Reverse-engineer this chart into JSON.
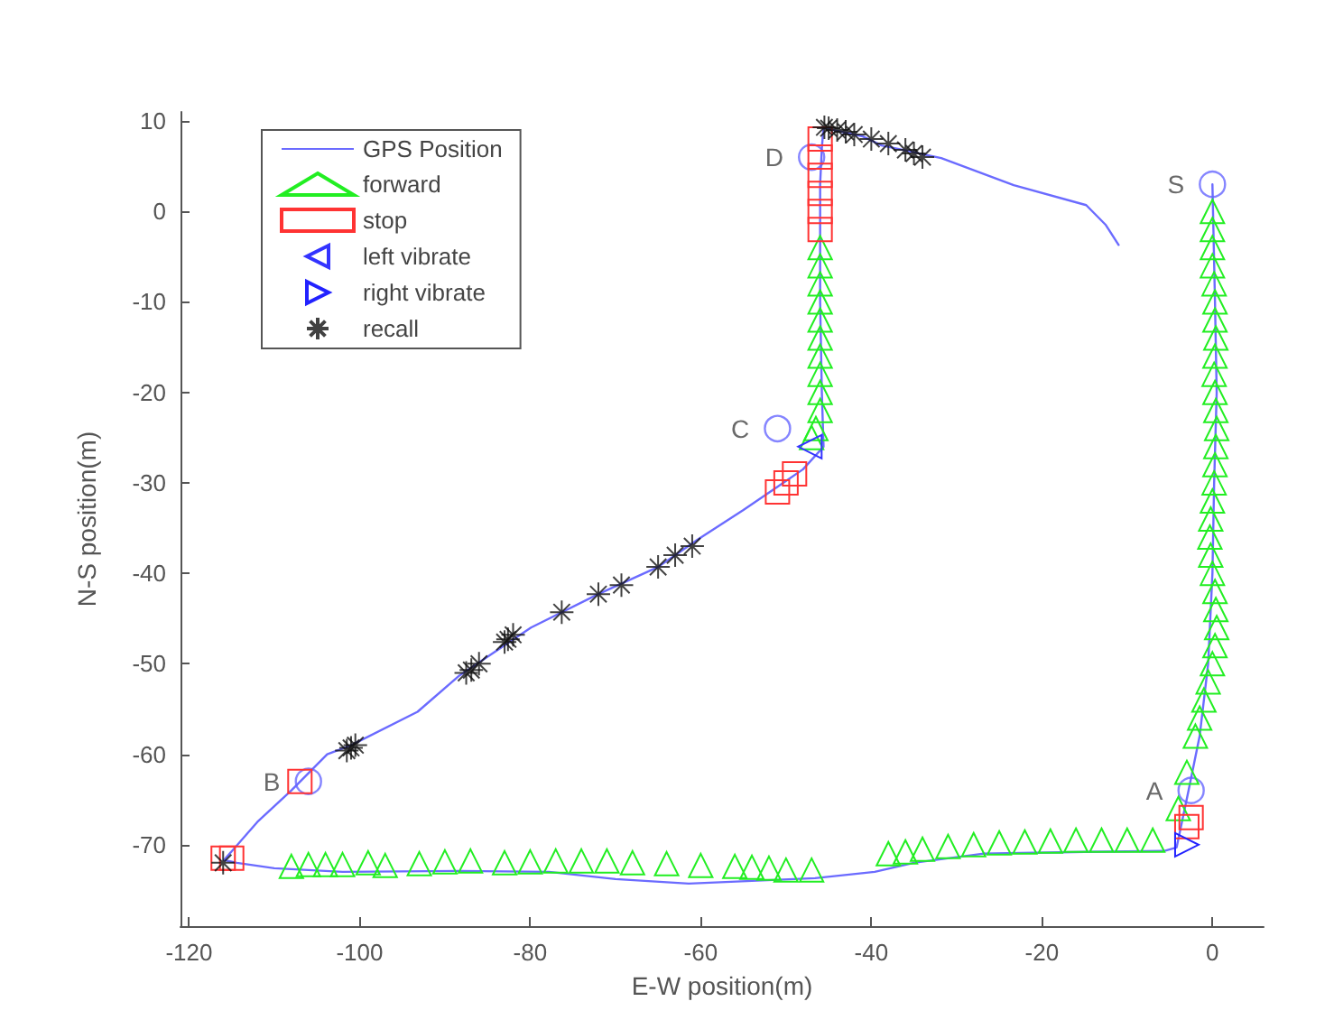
{
  "chart_data": {
    "type": "scatter",
    "xlabel": "E-W position(m)",
    "ylabel": "N-S position(m)",
    "xlim": [
      -121,
      6
    ],
    "ylim": [
      -79,
      11
    ],
    "xticks": [
      -120,
      -100,
      -80,
      -60,
      -40,
      -20,
      0
    ],
    "yticks": [
      -70,
      -60,
      -50,
      -40,
      -30,
      -20,
      -10,
      0,
      10
    ],
    "grid": false,
    "legend": "top left",
    "series": [
      {
        "name": "GPS Position",
        "type": "line",
        "marker": "none",
        "color": "#6b6bff",
        "x": [
          0,
          0.3,
          0.5,
          0.2,
          0,
          -0.5,
          -1.5,
          -2.8,
          -4.2,
          -5.7,
          -15,
          -27,
          -35,
          -39.6,
          -46.6,
          -54,
          -61.4,
          -70,
          -77.8,
          -88.3,
          -102,
          -110,
          -114.4,
          -115.9,
          -112,
          -108,
          -103.8,
          -101,
          -93.2,
          -88.3,
          -79.9,
          -72,
          -65,
          -60.4,
          -55,
          -50.8,
          -48,
          -45.6,
          -45.8,
          -46,
          -46,
          -46,
          -45.8,
          -45.6,
          -44,
          -41,
          -38.8,
          -31.8,
          -23.3,
          -14.8,
          -12.5,
          -11
        ],
        "values": [
          3,
          -10,
          -20,
          -30,
          -40,
          -50,
          -58,
          -64,
          -70.3,
          -70.7,
          -70.8,
          -71,
          -72,
          -73,
          -73.7,
          -74,
          -74.3,
          -73.8,
          -73,
          -72.9,
          -73,
          -72.6,
          -72,
          -71.7,
          -67.5,
          -64,
          -60,
          -59,
          -55.3,
          -51.3,
          -46,
          -42.3,
          -39.3,
          -36.3,
          -33,
          -30.3,
          -28.5,
          -26,
          -20,
          -10,
          -3,
          3,
          7,
          9.3,
          8.9,
          8.3,
          7.3,
          5.9,
          2.9,
          0.7,
          -1.5,
          -3.7
        ]
      },
      {
        "name": "forward",
        "marker": "triangle",
        "color": "#22ee22",
        "x": [
          0,
          0,
          0,
          0,
          0.2,
          0.3,
          0.3,
          0.4,
          0.3,
          0.2,
          0.3,
          0.4,
          0.5,
          0.4,
          0.3,
          0.2,
          0,
          -0.2,
          -0.3,
          -0.2,
          0,
          0.3,
          0.4,
          0.5,
          0.3,
          0,
          -0.5,
          -1,
          -1.5,
          -2,
          -3,
          -4,
          -7,
          -10,
          -13,
          -16,
          -19,
          -22,
          -25,
          -28,
          -31,
          -34,
          -36,
          -38,
          -47,
          -50,
          -52,
          -54,
          -56,
          -60,
          -64,
          -68,
          -71,
          -74,
          -77,
          -80,
          -83,
          -87,
          -90,
          -93,
          -97,
          -99,
          -102,
          -104,
          -106,
          -108,
          -46,
          -46,
          -46,
          -46,
          -46,
          -46,
          -46,
          -46,
          -46,
          -46,
          -46.5,
          -47
        ],
        "values": [
          0,
          -2,
          -4,
          -6,
          -8,
          -10,
          -12,
          -14,
          -16,
          -18,
          -20,
          -22,
          -24,
          -26,
          -28,
          -30,
          -32,
          -34,
          -36,
          -38,
          -40,
          -42,
          -44,
          -46,
          -48,
          -50,
          -52,
          -54,
          -56,
          -58,
          -62,
          -66,
          -69.5,
          -69.5,
          -69.5,
          -69.5,
          -69.6,
          -69.7,
          -69.8,
          -70,
          -70.2,
          -70.5,
          -70.8,
          -71,
          -72.8,
          -72.8,
          -72.6,
          -72.5,
          -72.4,
          -72.3,
          -72.1,
          -72,
          -71.8,
          -71.8,
          -71.8,
          -71.9,
          -72,
          -71.8,
          -71.9,
          -72.1,
          -72.3,
          -72,
          -72.2,
          -72.2,
          -72.2,
          -72.4,
          -4,
          -6,
          -8,
          -10,
          -12,
          -14,
          -16,
          -18,
          -20,
          -22,
          -24,
          -25
        ]
      },
      {
        "name": "stop",
        "marker": "square",
        "color": "#ff3333",
        "x": [
          -46,
          -46,
          -46,
          -46,
          -46,
          -46,
          -51,
          -50,
          -49,
          -107,
          -116,
          -115,
          -3,
          -2.5
        ],
        "values": [
          8,
          6,
          4,
          2,
          0,
          -2,
          -31,
          -30,
          -29,
          -63,
          -71.5,
          -71.5,
          -68,
          -67
        ]
      },
      {
        "name": "left vibrate",
        "marker": "triangle-left",
        "color": "#3333ff",
        "x": [
          -47.2
        ],
        "values": [
          -26
        ]
      },
      {
        "name": "right vibrate",
        "marker": "triangle-right",
        "color": "#2222ff",
        "x": [
          -3
        ],
        "values": [
          -70
        ]
      },
      {
        "name": "recall",
        "marker": "cross",
        "color": "#111111",
        "x": [
          -116,
          -101.5,
          -101,
          -100.5,
          -87.5,
          -86.9,
          -86,
          -83,
          -82.6,
          -82,
          -76.3,
          -72,
          -69.3,
          -65,
          -63,
          -61,
          -45.5,
          -45,
          -44,
          -43,
          -42,
          -40,
          -38,
          -36,
          -35,
          -34
        ],
        "values": [
          -72,
          -59.6,
          -59.3,
          -59,
          -51,
          -50.7,
          -50,
          -47.6,
          -47.3,
          -46.8,
          -44.3,
          -42.3,
          -41.3,
          -39.3,
          -38,
          -37,
          9.3,
          9.2,
          9,
          8.8,
          8.5,
          8,
          7.5,
          6.8,
          6.4,
          6
        ]
      }
    ],
    "annotations": [
      {
        "text": "S",
        "x": 0,
        "y": 3
      },
      {
        "text": "A",
        "x": -2.5,
        "y": -64
      },
      {
        "text": "B",
        "x": -106,
        "y": -63
      },
      {
        "text": "C",
        "x": -51,
        "y": -24
      },
      {
        "text": "D",
        "x": -47,
        "y": 6
      }
    ]
  }
}
